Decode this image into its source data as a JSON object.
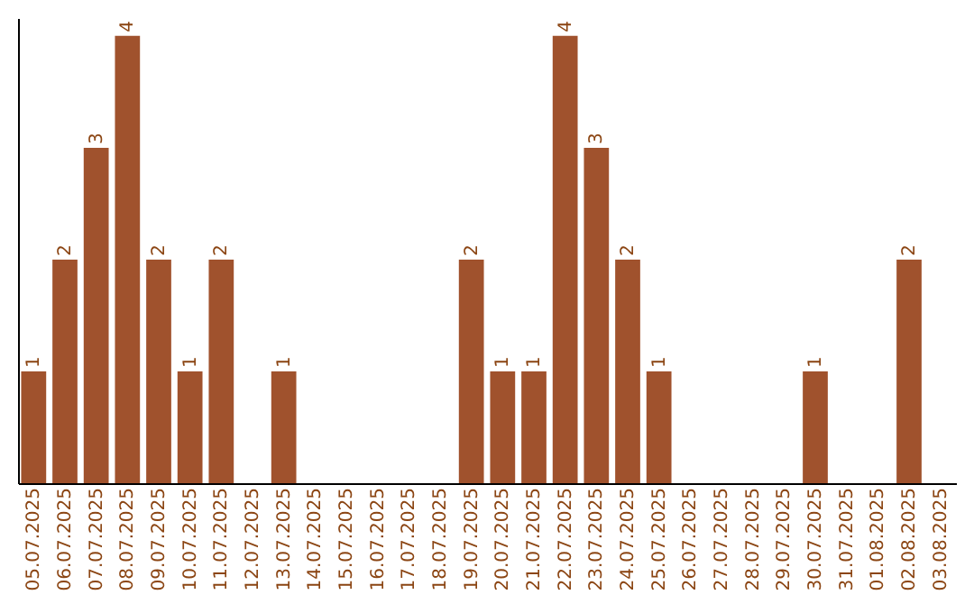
{
  "chart_data": {
    "type": "bar",
    "categories": [
      "05.07.2025",
      "06.07.2025",
      "07.07.2025",
      "08.07.2025",
      "09.07.2025",
      "10.07.2025",
      "11.07.2025",
      "12.07.2025",
      "13.07.2025",
      "14.07.2025",
      "15.07.2025",
      "16.07.2025",
      "17.07.2025",
      "18.07.2025",
      "19.07.2025",
      "20.07.2025",
      "21.07.2025",
      "22.07.2025",
      "23.07.2025",
      "24.07.2025",
      "25.07.2025",
      "26.07.2025",
      "27.07.2025",
      "28.07.2025",
      "29.07.2025",
      "30.07.2025",
      "31.07.2025",
      "01.08.2025",
      "02.08.2025",
      "03.08.2025"
    ],
    "values": [
      1,
      2,
      3,
      4,
      2,
      1,
      2,
      0,
      1,
      0,
      0,
      0,
      0,
      0,
      2,
      1,
      1,
      4,
      3,
      2,
      1,
      0,
      0,
      0,
      0,
      1,
      0,
      0,
      2,
      0
    ],
    "value_labels": [
      "1",
      "2",
      "3",
      "4",
      "2",
      "1",
      "2",
      null,
      "1",
      null,
      null,
      null,
      null,
      null,
      "2",
      "1",
      "1",
      "4",
      "3",
      "2",
      "1",
      null,
      null,
      null,
      null,
      "1",
      null,
      null,
      "2",
      null
    ],
    "color": "#a0522d",
    "tick_labels": "x"
  }
}
